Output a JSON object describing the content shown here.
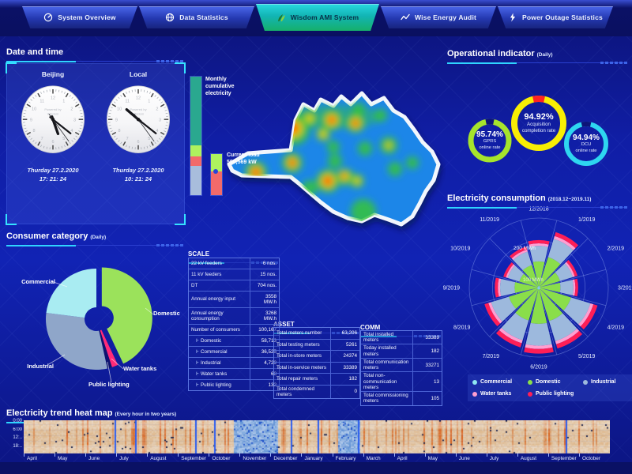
{
  "app": {
    "title": "Wisdom AMI System"
  },
  "nav": {
    "tabs": [
      {
        "label": "System Overview",
        "icon": "gauge-icon",
        "active": false
      },
      {
        "label": "Data Statistics",
        "icon": "globe-icon",
        "active": false
      },
      {
        "label": "Wisdom AMI System",
        "icon": "leaf-icon",
        "active": true
      },
      {
        "label": "Wise Energy Audit",
        "icon": "trend-icon",
        "active": false
      },
      {
        "label": "Power Outage Statistics",
        "icon": "bolt-icon",
        "active": false
      }
    ]
  },
  "panels": {
    "datetime": {
      "title": "Date and time",
      "watermark_line1": "Powered by",
      "watermark_line2": "Wisdom",
      "clocks": [
        {
          "city": "Beijing",
          "date": "Thurday 27.2.2020",
          "time": "17: 21: 24"
        },
        {
          "city": "Local",
          "date": "Thurday 27.2.2020",
          "time": "10: 21: 24"
        }
      ]
    },
    "consumer": {
      "title": "Consumer category",
      "subtitle": "(Daily)"
    },
    "bars": {
      "monthly_label": "Monthly cumulative electricity",
      "current_label": "Current load",
      "current_value": "590,569 kW"
    },
    "operational": {
      "title": "Operational indicator",
      "subtitle": "(Daily)",
      "gauges": [
        {
          "value": "95.74%",
          "label1": "GPRS",
          "label2": "online rate",
          "color": "#a6e42c",
          "notch_color": "#0c1478"
        },
        {
          "value": "94.92%",
          "label1": "Acquisition",
          "label2": "completion rate",
          "color": "#f8ee04",
          "notch_color": "#ff2222"
        },
        {
          "value": "94.94%",
          "label1": "DCU",
          "label2": "online rate",
          "color": "#2ed6f0",
          "notch_color": "#0c1478"
        }
      ]
    },
    "consumption": {
      "title": "Electricity consumption",
      "subtitle": "(2018.12~2019.11)",
      "ring_label_outer": "200 MWh",
      "ring_label_inner": "100 MWh",
      "legend": [
        {
          "label": "Commercial",
          "color": "#8fe8f2"
        },
        {
          "label": "Domestic",
          "color": "#8ade4a"
        },
        {
          "label": "Industrial",
          "color": "#9db9dd"
        },
        {
          "label": "Water tanks",
          "color": "#ff9fd0"
        },
        {
          "label": "Public lighting",
          "color": "#ff1e56"
        }
      ]
    },
    "heatmap": {
      "title": "Electricity trend heat map",
      "subtitle": "(Every hour in two years)",
      "hours": [
        "0:00",
        "6:00",
        "12:..",
        "18:.."
      ],
      "months": [
        "April",
        "May",
        "June",
        "July",
        "August",
        "September",
        "October",
        "November",
        "December",
        "January",
        "February",
        "March",
        "April",
        "May",
        "June",
        "July",
        "August",
        "September",
        "October"
      ]
    }
  },
  "tables": {
    "scale": {
      "title": "SCALE",
      "branch_glyph": "Ͱ",
      "rows": [
        {
          "label": "22 kV feeders",
          "value": "6 nos."
        },
        {
          "label": "11 kV feeders",
          "value": "15 nos."
        },
        {
          "label": "DT",
          "value": "704 nos."
        },
        {
          "label": "Annual energy input",
          "value": "3558 MW.h"
        },
        {
          "label": "Annual energy consumption",
          "value": "3268 MW.h"
        },
        {
          "label": "Number of consumers",
          "value": "100,167"
        },
        {
          "label": "Domestic",
          "value": "58,713",
          "indent": true
        },
        {
          "label": "Commercial",
          "value": "36,525",
          "indent": true
        },
        {
          "label": "Industrial",
          "value": "4,729",
          "indent": true
        },
        {
          "label": "Water tanks",
          "value": "68",
          "indent": true
        },
        {
          "label": "Public lighting",
          "value": "132",
          "indent": true
        }
      ]
    },
    "asset": {
      "title": "ASSET",
      "rows": [
        {
          "label": "Total meters number",
          "value": "63,206"
        },
        {
          "label": "Total testing meters",
          "value": "5261"
        },
        {
          "label": "Total in-store meters",
          "value": "24374"
        },
        {
          "label": "Total in-service meters",
          "value": "33389"
        },
        {
          "label": "Total repair meters",
          "value": "182"
        },
        {
          "label": "Total condemned meters",
          "value": "0"
        }
      ]
    },
    "comm": {
      "title": "COMM",
      "rows": [
        {
          "label": "Total installed meters",
          "value": "33389"
        },
        {
          "label": "Today installed meters",
          "value": "182"
        },
        {
          "label": "Total communication meters",
          "value": "33271"
        },
        {
          "label": "Total non-communication meters",
          "value": "13"
        },
        {
          "label": "Total commissioning meters",
          "value": "105"
        }
      ]
    }
  },
  "chart_data": [
    {
      "type": "pie",
      "title": "Consumer category (Daily)",
      "labels": [
        "Domestic",
        "Water tanks",
        "Public lighting",
        "Industrial",
        "Commercial"
      ],
      "values": [
        43,
        2,
        1.5,
        30.5,
        23
      ],
      "unit": "percent of daily consumption (estimated from chart)",
      "colors": [
        "#9be25b",
        "#ff2a78",
        "#0d1470",
        "#8fa6c9",
        "#a9ecf2"
      ],
      "exploded_slice": "Domestic",
      "legend_position": "callout-labels"
    },
    {
      "type": "donut",
      "title": "Operational indicator (Daily)",
      "series": [
        {
          "name": "GPRS online rate",
          "value": 95.74
        },
        {
          "name": "Acquisition completion rate",
          "value": 94.92
        },
        {
          "name": "DCU online rate",
          "value": 94.94
        }
      ],
      "unit": "%"
    },
    {
      "type": "rose",
      "title": "Electricity consumption (2018.12~2019.11)",
      "categories": [
        "12/2018",
        "1/2019",
        "2/2019",
        "3/2019",
        "4/2019",
        "5/2019",
        "6/2019",
        "7/2019",
        "8/2019",
        "9/2019",
        "10/2019",
        "11/2019"
      ],
      "values": [
        205,
        250,
        175,
        170,
        265,
        275,
        285,
        270,
        245,
        190,
        160,
        185
      ],
      "unit": "MWh",
      "rlim": [
        0,
        300
      ],
      "ring_ticks": [
        100,
        200
      ],
      "stack_fractions": {
        "Commercial": 0.03,
        "Domestic": 0.52,
        "Industrial": 0.33,
        "Water tanks": 0.05,
        "Public lighting": 0.07
      },
      "legend_position": "bottom"
    },
    {
      "type": "heatmap",
      "title": "Electricity trend heat map (Every hour in two years)",
      "x": "19 months, April (year 1) through October (year 2)",
      "y": "hour of day 0:00-23:00",
      "description": "warm cream-to-red intensity for most hours; cool blue low-load blocks around November-December and February; scattered bright-blue vertical gap lines"
    }
  ]
}
